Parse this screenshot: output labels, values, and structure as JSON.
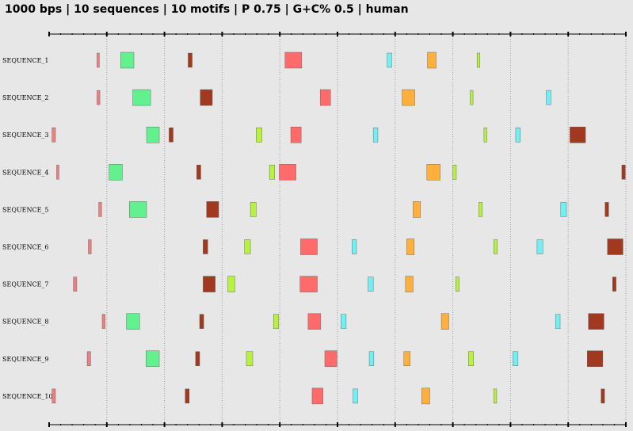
{
  "header": {
    "title": "1000 bps | 10 sequences | 10 motifs | P 0.75 | G+C% 0.5 | human"
  },
  "colors": {
    "background": "#e7e7e7",
    "axis": "#000000",
    "gridline": "#9a9a9a",
    "motif_1": "#ef7f7f",
    "motif_2": "#63f08f",
    "motif_3": "#a0391f",
    "motif_4": "#ff6b6b",
    "motif_5": "#6ef0f5",
    "motif_6": "#ffb03c",
    "motif_7": "#b6f23e"
  },
  "axis": {
    "total_bp": 1000,
    "ticks_bp": [
      0,
      100,
      200,
      300,
      400,
      500,
      600,
      700,
      800,
      900,
      1000
    ]
  },
  "sequences": [
    {
      "label": "SEQUENCE_1",
      "motifs": [
        {
          "motif": "motif_1",
          "start": 83,
          "end": 87
        },
        {
          "motif": "motif_2",
          "start": 124,
          "end": 147
        },
        {
          "motif": "motif_3",
          "start": 241,
          "end": 248
        },
        {
          "motif": "motif_4",
          "start": 409,
          "end": 438
        },
        {
          "motif": "motif_5",
          "start": 586,
          "end": 594
        },
        {
          "motif": "motif_6",
          "start": 656,
          "end": 671
        },
        {
          "motif": "motif_7",
          "start": 742,
          "end": 747
        }
      ]
    },
    {
      "label": "SEQUENCE_2",
      "motifs": [
        {
          "motif": "motif_1",
          "start": 83,
          "end": 88
        },
        {
          "motif": "motif_2",
          "start": 145,
          "end": 176
        },
        {
          "motif": "motif_3",
          "start": 262,
          "end": 283
        },
        {
          "motif": "motif_4",
          "start": 470,
          "end": 488
        },
        {
          "motif": "motif_6",
          "start": 612,
          "end": 634
        },
        {
          "motif": "motif_7",
          "start": 730,
          "end": 735
        },
        {
          "motif": "motif_5",
          "start": 862,
          "end": 870
        }
      ]
    },
    {
      "label": "SEQUENCE_3",
      "motifs": [
        {
          "motif": "motif_1",
          "start": 5,
          "end": 11
        },
        {
          "motif": "motif_2",
          "start": 169,
          "end": 191
        },
        {
          "motif": "motif_3",
          "start": 208,
          "end": 215
        },
        {
          "motif": "motif_7",
          "start": 359,
          "end": 369
        },
        {
          "motif": "motif_4",
          "start": 419,
          "end": 437
        },
        {
          "motif": "motif_5",
          "start": 562,
          "end": 570
        },
        {
          "motif": "motif_7",
          "start": 754,
          "end": 759
        },
        {
          "motif": "motif_5",
          "start": 809,
          "end": 817
        },
        {
          "motif": "motif_3",
          "start": 903,
          "end": 930
        }
      ]
    },
    {
      "label": "SEQUENCE_4",
      "motifs": [
        {
          "motif": "motif_1",
          "start": 13,
          "end": 17
        },
        {
          "motif": "motif_2",
          "start": 104,
          "end": 127
        },
        {
          "motif": "motif_3",
          "start": 256,
          "end": 263
        },
        {
          "motif": "motif_7",
          "start": 382,
          "end": 391
        },
        {
          "motif": "motif_4",
          "start": 399,
          "end": 428
        },
        {
          "motif": "motif_6",
          "start": 655,
          "end": 678
        },
        {
          "motif": "motif_7",
          "start": 700,
          "end": 706
        },
        {
          "motif": "motif_3",
          "start": 993,
          "end": 999
        }
      ]
    },
    {
      "label": "SEQUENCE_5",
      "motifs": [
        {
          "motif": "motif_1",
          "start": 86,
          "end": 91
        },
        {
          "motif": "motif_2",
          "start": 139,
          "end": 169
        },
        {
          "motif": "motif_3",
          "start": 273,
          "end": 294
        },
        {
          "motif": "motif_7",
          "start": 349,
          "end": 359
        },
        {
          "motif": "motif_6",
          "start": 631,
          "end": 644
        },
        {
          "motif": "motif_7",
          "start": 745,
          "end": 751
        },
        {
          "motif": "motif_5",
          "start": 887,
          "end": 897
        },
        {
          "motif": "motif_3",
          "start": 964,
          "end": 970
        }
      ]
    },
    {
      "label": "SEQUENCE_6",
      "motifs": [
        {
          "motif": "motif_1",
          "start": 68,
          "end": 73
        },
        {
          "motif": "motif_3",
          "start": 267,
          "end": 275
        },
        {
          "motif": "motif_7",
          "start": 339,
          "end": 349
        },
        {
          "motif": "motif_4",
          "start": 436,
          "end": 465
        },
        {
          "motif": "motif_5",
          "start": 525,
          "end": 533
        },
        {
          "motif": "motif_6",
          "start": 620,
          "end": 633
        },
        {
          "motif": "motif_7",
          "start": 771,
          "end": 777
        },
        {
          "motif": "motif_5",
          "start": 846,
          "end": 856
        },
        {
          "motif": "motif_3",
          "start": 968,
          "end": 995
        }
      ]
    },
    {
      "label": "SEQUENCE_7",
      "motifs": [
        {
          "motif": "motif_1",
          "start": 42,
          "end": 48
        },
        {
          "motif": "motif_3",
          "start": 267,
          "end": 288
        },
        {
          "motif": "motif_7",
          "start": 310,
          "end": 322
        },
        {
          "motif": "motif_4",
          "start": 435,
          "end": 465
        },
        {
          "motif": "motif_5",
          "start": 553,
          "end": 562
        },
        {
          "motif": "motif_6",
          "start": 618,
          "end": 631
        },
        {
          "motif": "motif_7",
          "start": 705,
          "end": 711
        },
        {
          "motif": "motif_3",
          "start": 977,
          "end": 983
        }
      ]
    },
    {
      "label": "SEQUENCE_8",
      "motifs": [
        {
          "motif": "motif_1",
          "start": 92,
          "end": 97
        },
        {
          "motif": "motif_2",
          "start": 134,
          "end": 157
        },
        {
          "motif": "motif_3",
          "start": 261,
          "end": 268
        },
        {
          "motif": "motif_7",
          "start": 389,
          "end": 398
        },
        {
          "motif": "motif_4",
          "start": 449,
          "end": 471
        },
        {
          "motif": "motif_5",
          "start": 506,
          "end": 515
        },
        {
          "motif": "motif_6",
          "start": 680,
          "end": 693
        },
        {
          "motif": "motif_5",
          "start": 878,
          "end": 886
        },
        {
          "motif": "motif_3",
          "start": 935,
          "end": 962
        }
      ]
    },
    {
      "label": "SEQUENCE_9",
      "motifs": [
        {
          "motif": "motif_1",
          "start": 66,
          "end": 72
        },
        {
          "motif": "motif_2",
          "start": 168,
          "end": 191
        },
        {
          "motif": "motif_3",
          "start": 254,
          "end": 261
        },
        {
          "motif": "motif_7",
          "start": 342,
          "end": 353
        },
        {
          "motif": "motif_4",
          "start": 478,
          "end": 499
        },
        {
          "motif": "motif_5",
          "start": 555,
          "end": 563
        },
        {
          "motif": "motif_6",
          "start": 615,
          "end": 626
        },
        {
          "motif": "motif_7",
          "start": 727,
          "end": 736
        },
        {
          "motif": "motif_5",
          "start": 804,
          "end": 813
        },
        {
          "motif": "motif_3",
          "start": 933,
          "end": 960
        }
      ]
    },
    {
      "label": "SEQUENCE_10",
      "motifs": [
        {
          "motif": "motif_1",
          "start": 5,
          "end": 11
        },
        {
          "motif": "motif_3",
          "start": 236,
          "end": 243
        },
        {
          "motif": "motif_4",
          "start": 456,
          "end": 475
        },
        {
          "motif": "motif_5",
          "start": 527,
          "end": 535
        },
        {
          "motif": "motif_6",
          "start": 646,
          "end": 660
        },
        {
          "motif": "motif_7",
          "start": 771,
          "end": 776
        },
        {
          "motif": "motif_3",
          "start": 957,
          "end": 963
        }
      ]
    }
  ]
}
